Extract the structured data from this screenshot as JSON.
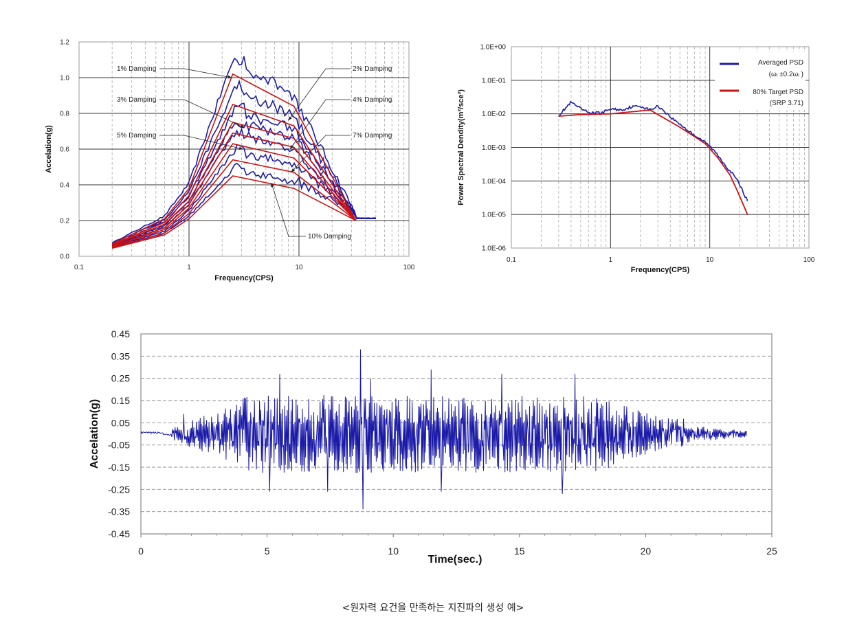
{
  "caption": "<원자력 요건을 만족하는 지진파의 생성 예>",
  "chart_data": [
    {
      "type": "line",
      "xscale": "log",
      "xlabel": "Frequency(CPS)",
      "ylabel": "Accelation(g)",
      "xlim": [
        0.1,
        100
      ],
      "ylim": [
        0,
        1.2
      ],
      "xticks": [
        "0.1",
        "1",
        "10",
        "100"
      ],
      "yticks": [
        "0.0",
        "0.2",
        "0.4",
        "0.6",
        "0.8",
        "1.0",
        "1.2"
      ],
      "grid": true,
      "target_color": "#cc1111",
      "series_color": "#1a1aa8",
      "curves": [
        {
          "name": "1% Damping",
          "target_y": [
            0.07,
            0.21,
            0.38,
            1.02,
            0.84,
            0.2
          ],
          "peak_y": 1.08
        },
        {
          "name": "2% Damping",
          "target_y": [
            0.065,
            0.19,
            0.34,
            0.85,
            0.73,
            0.2
          ],
          "peak_y": 0.93
        },
        {
          "name": "3% Damping",
          "target_y": [
            0.06,
            0.18,
            0.31,
            0.75,
            0.66,
            0.2
          ],
          "peak_y": 0.82
        },
        {
          "name": "4% Damping",
          "target_y": [
            0.055,
            0.16,
            0.29,
            0.69,
            0.61,
            0.2
          ],
          "peak_y": 0.76
        },
        {
          "name": "5% Damping",
          "target_y": [
            0.055,
            0.15,
            0.27,
            0.63,
            0.55,
            0.2
          ],
          "peak_y": 0.7
        },
        {
          "name": "7% Damping",
          "target_y": [
            0.05,
            0.13,
            0.24,
            0.54,
            0.47,
            0.2
          ],
          "peak_y": 0.6
        },
        {
          "name": "10% Damping",
          "target_y": [
            0.045,
            0.12,
            0.21,
            0.45,
            0.38,
            0.2
          ],
          "peak_y": 0.5
        }
      ],
      "target_x": [
        0.2,
        0.6,
        1.0,
        2.5,
        9.0,
        33.0
      ],
      "annotations": [
        "1% Damping",
        "2% Damping",
        "3% Damping",
        "4% Damping",
        "5% Damping",
        "7% Damping",
        "10% Damping"
      ]
    },
    {
      "type": "line",
      "xscale": "log",
      "yscale": "log",
      "xlabel": "Frequency(CPS)",
      "ylabel": "Power Spectral Dendity(m²/sce³)",
      "xlim": [
        0.1,
        100
      ],
      "ylim": [
        1e-06,
        1
      ],
      "xticks": [
        "0.1",
        "1",
        "10",
        "100"
      ],
      "yticks": [
        "1.0E-06",
        "1.0E-05",
        "1.0E-04",
        "1.0E-03",
        "1.0E-02",
        "1.0E-01",
        "1.0E+00"
      ],
      "grid": true,
      "legend_position": "top-right",
      "series": [
        {
          "name": "Averaged PSD",
          "sub": "(ωᵢ ±0.2ωᵢ )",
          "color": "#1a1aa8",
          "x": [
            0.3,
            0.4,
            0.5,
            0.6,
            0.8,
            1.0,
            1.3,
            1.6,
            2.0,
            2.5,
            3.0,
            3.5,
            4.0,
            5.0,
            6.0,
            8.0,
            10.0,
            12.0,
            15.0,
            18.0,
            20.0,
            24.0
          ],
          "y": [
            0.009,
            0.022,
            0.014,
            0.011,
            0.0105,
            0.014,
            0.013,
            0.016,
            0.017,
            0.013,
            0.017,
            0.012,
            0.008,
            0.005,
            0.0032,
            0.0018,
            0.0011,
            0.0006,
            0.00025,
            0.00013,
            8e-05,
            2.5e-05
          ]
        },
        {
          "name": "80% Target PSD",
          "sub": "(SRP 3.71)",
          "color": "#cc1111",
          "x": [
            0.3,
            0.5,
            1.0,
            2.5,
            5.0,
            9.0,
            12.0,
            16.0,
            19.0,
            24.0
          ],
          "y": [
            0.0085,
            0.0095,
            0.01,
            0.013,
            0.004,
            0.0013,
            0.0005,
            0.00015,
            5e-05,
            1e-05
          ]
        }
      ]
    },
    {
      "type": "line",
      "xlabel": "Time(sec.)",
      "ylabel": "Accelation(g)",
      "xlim": [
        0,
        25
      ],
      "ylim": [
        -0.45,
        0.45
      ],
      "xticks": [
        "0",
        "5",
        "10",
        "15",
        "20",
        "25"
      ],
      "yticks": [
        "0.45",
        "0.35",
        "0.25",
        "0.15",
        "0.05",
        "-0.05",
        "-0.15",
        "-0.25",
        "-0.35",
        "-0.45"
      ],
      "grid": true,
      "series_color": "#1a1aa8",
      "duration": 24,
      "peaks": [
        [
          1.7,
          0.09
        ],
        [
          5.1,
          -0.26
        ],
        [
          5.5,
          0.27
        ],
        [
          7.4,
          -0.26
        ],
        [
          8.7,
          0.38
        ],
        [
          8.8,
          -0.34
        ],
        [
          9.1,
          0.25
        ],
        [
          11.5,
          0.29
        ],
        [
          11.9,
          -0.26
        ],
        [
          14.3,
          0.27
        ],
        [
          16.7,
          -0.27
        ],
        [
          17.2,
          0.27
        ],
        [
          20.9,
          0.07
        ]
      ]
    }
  ]
}
